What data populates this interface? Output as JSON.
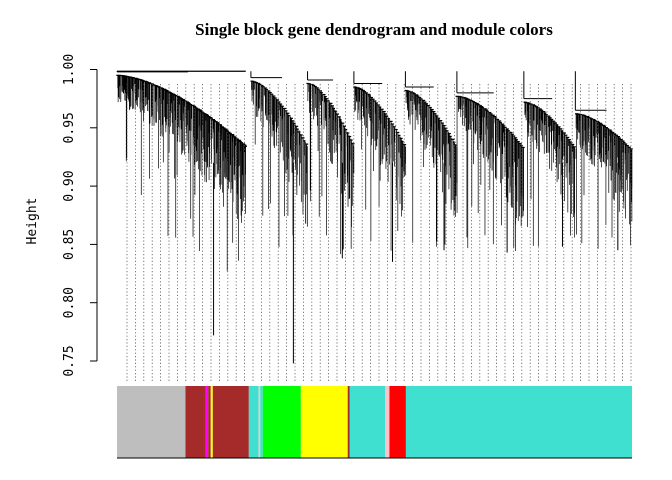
{
  "chart_data": {
    "type": "dendrogram",
    "title": "Single block gene dendrogram and module colors",
    "ylabel": "Height",
    "ylim": [
      0.75,
      1.0
    ],
    "yticks": [
      "0.75",
      "0.80",
      "0.85",
      "0.90",
      "0.95",
      "1.00"
    ],
    "grid": false,
    "legend": "none",
    "branches": [
      {
        "start": 0.0,
        "end": 0.25,
        "top": 0.998,
        "depth": 0.772,
        "density": 1.0
      },
      {
        "start": 0.26,
        "end": 0.37,
        "top": 0.993,
        "depth": 0.748,
        "density": 0.8
      },
      {
        "start": 0.37,
        "end": 0.46,
        "top": 0.991,
        "depth": 0.838,
        "density": 0.8
      },
      {
        "start": 0.46,
        "end": 0.56,
        "top": 0.988,
        "depth": 0.835,
        "density": 0.8
      },
      {
        "start": 0.56,
        "end": 0.66,
        "top": 0.985,
        "depth": 0.845,
        "density": 0.8
      },
      {
        "start": 0.66,
        "end": 0.79,
        "top": 0.98,
        "depth": 0.843,
        "density": 0.85
      },
      {
        "start": 0.79,
        "end": 0.89,
        "top": 0.975,
        "depth": 0.848,
        "density": 0.8
      },
      {
        "start": 0.89,
        "end": 1.0,
        "top": 0.965,
        "depth": 0.845,
        "density": 0.85
      }
    ],
    "module_colors": [
      {
        "color": "#BEBEBE",
        "from": 0.0,
        "to": 0.133
      },
      {
        "color": "#A52A2A",
        "from": 0.133,
        "to": 0.172
      },
      {
        "color": "#FF00FF",
        "from": 0.172,
        "to": 0.177
      },
      {
        "color": "#A52A2A",
        "from": 0.177,
        "to": 0.182
      },
      {
        "color": "#FFFF00",
        "from": 0.182,
        "to": 0.186
      },
      {
        "color": "#A52A2A",
        "from": 0.186,
        "to": 0.256
      },
      {
        "color": "#40E0D0",
        "from": 0.256,
        "to": 0.275
      },
      {
        "color": "#FFC0CB",
        "from": 0.275,
        "to": 0.278
      },
      {
        "color": "#40E0D0",
        "from": 0.278,
        "to": 0.283
      },
      {
        "color": "#00FF00",
        "from": 0.283,
        "to": 0.357
      },
      {
        "color": "#FFFF00",
        "from": 0.357,
        "to": 0.448
      },
      {
        "color": "#A52A2A",
        "from": 0.448,
        "to": 0.452
      },
      {
        "color": "#40E0D0",
        "from": 0.452,
        "to": 0.521
      },
      {
        "color": "#FFC0CB",
        "from": 0.521,
        "to": 0.529
      },
      {
        "color": "#FF0000",
        "from": 0.529,
        "to": 0.561
      },
      {
        "color": "#40E0D0",
        "from": 0.561,
        "to": 1.0
      }
    ]
  }
}
